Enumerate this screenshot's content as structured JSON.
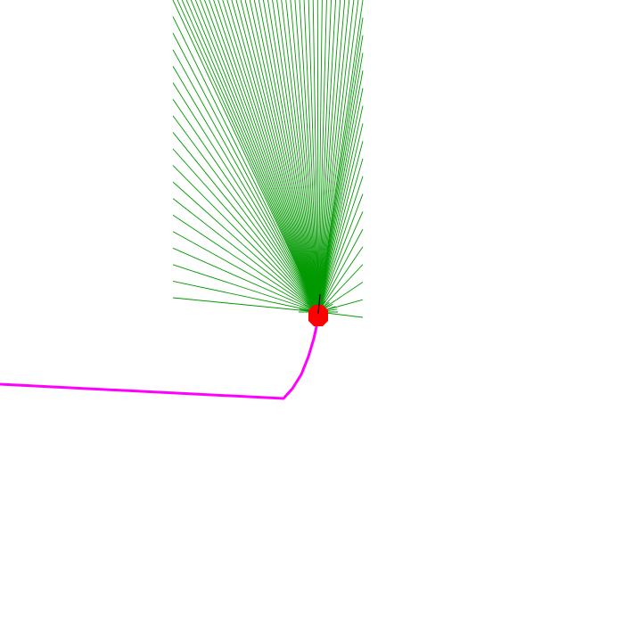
{
  "colors": {
    "background": "#ffffff",
    "sensor_rays": "#009900",
    "trajectory": "#ff00ff",
    "robot_body": "#ff0000",
    "heading_indicator": "#000000"
  },
  "icons": {
    "robot": "robot-marker-icon",
    "heading": "heading-arrow-icon"
  }
}
